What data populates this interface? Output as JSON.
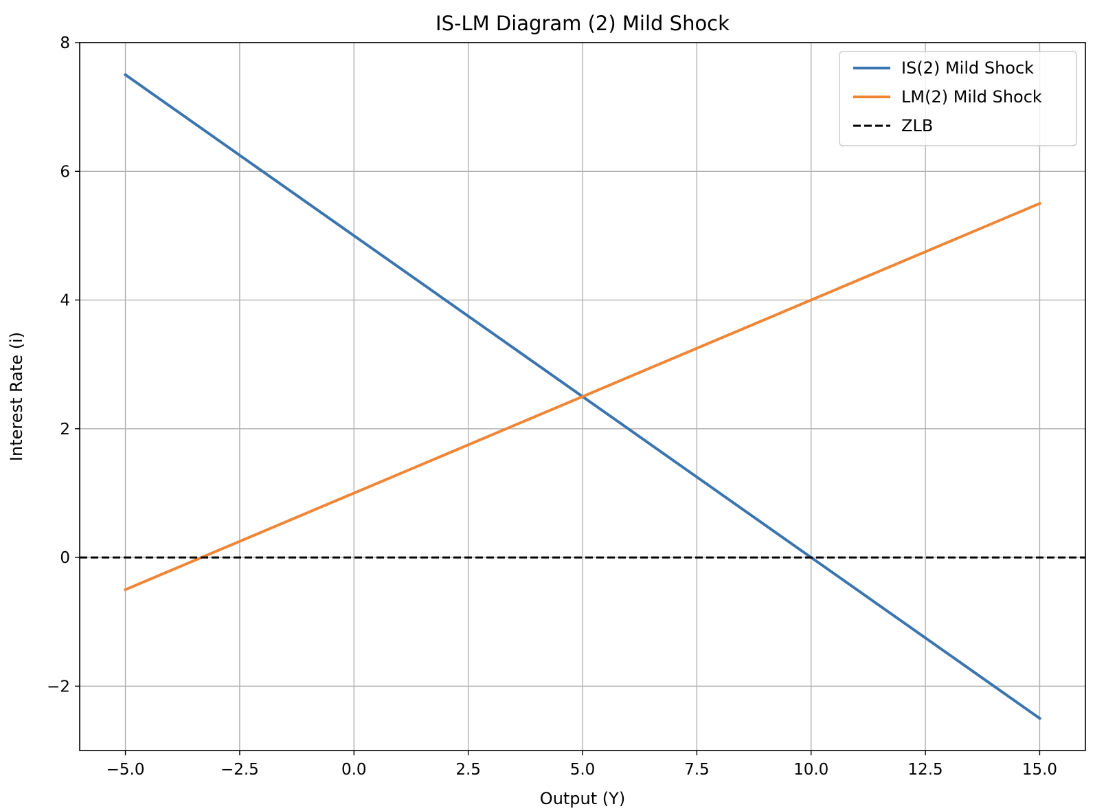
{
  "chart_data": {
    "type": "line",
    "title": "IS-LM Diagram (2) Mild Shock",
    "xlabel": "Output (Y)",
    "ylabel": "Interest Rate (i)",
    "xlim": [
      -6.0,
      16.0
    ],
    "ylim": [
      -3.0,
      8.0
    ],
    "xticks": [
      -5.0,
      -2.5,
      0.0,
      2.5,
      5.0,
      7.5,
      10.0,
      12.5,
      15.0
    ],
    "xtick_labels": [
      "−5.0",
      "−2.5",
      "0.0",
      "2.5",
      "5.0",
      "7.5",
      "10.0",
      "12.5",
      "15.0"
    ],
    "yticks": [
      -2,
      0,
      2,
      4,
      6,
      8
    ],
    "ytick_labels": [
      "−2",
      "0",
      "2",
      "4",
      "6",
      "8"
    ],
    "grid": true,
    "legend_position": "top-right",
    "series": [
      {
        "name": "IS(2) Mild Shock",
        "color": "#3b75af",
        "style": "solid",
        "x": [
          -5.0,
          15.0
        ],
        "y": [
          7.5,
          -2.5
        ]
      },
      {
        "name": "LM(2) Mild Shock",
        "color": "#ef8636",
        "style": "solid",
        "x": [
          -5.0,
          15.0
        ],
        "y": [
          -0.5,
          5.5
        ]
      },
      {
        "name": "ZLB",
        "color": "#000000",
        "style": "dashed",
        "x": [
          -6.0,
          16.0
        ],
        "y": [
          0.0,
          0.0
        ]
      }
    ]
  }
}
